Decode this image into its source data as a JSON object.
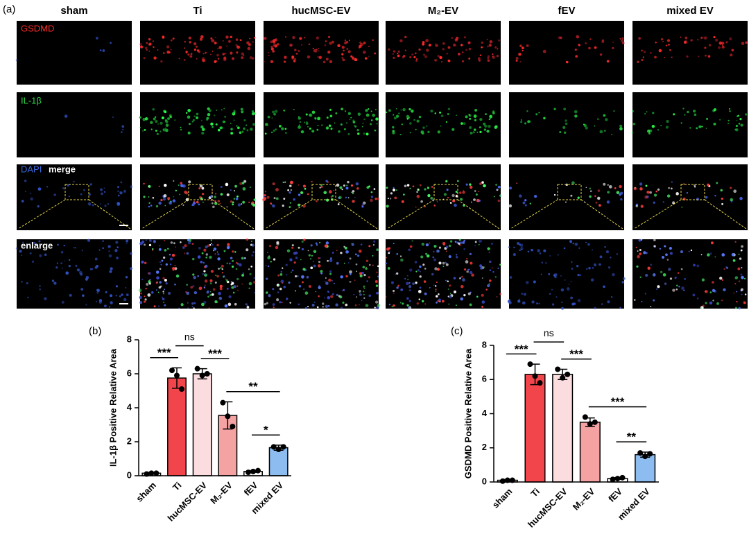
{
  "panel_a": {
    "label": "(a)",
    "columns": [
      "sham",
      "Ti",
      "hucMSC-EV",
      "M₂-EV",
      "fEV",
      "mixed EV"
    ],
    "rows": [
      "GSDMD",
      "IL-1β",
      "DAPI",
      "merge",
      "enlarge"
    ]
  },
  "chart_data": [
    {
      "type": "bar",
      "panel_label": "(b)",
      "ylabel": "IL-1β Positive Relative Area",
      "categories": [
        "sham",
        "Ti",
        "hucMSC-EV",
        "M₂-EV",
        "fEV",
        "mixed EV"
      ],
      "values": [
        0.15,
        5.75,
        6.0,
        3.55,
        0.25,
        1.65
      ],
      "errors": [
        0.05,
        0.6,
        0.3,
        0.8,
        0.05,
        0.15
      ],
      "points": [
        [
          0.1,
          0.15,
          0.15
        ],
        [
          6.2,
          5.9,
          5.1
        ],
        [
          6.3,
          5.9,
          6.0
        ],
        [
          4.3,
          3.5,
          2.9
        ],
        [
          0.2,
          0.25,
          0.3
        ],
        [
          1.7,
          1.55,
          1.7
        ]
      ],
      "colors": [
        "#ffffff",
        "#f2454b",
        "#fbdde0",
        "#f5a2a2",
        "#ffffff",
        "#8dbdf0"
      ],
      "ylim": [
        0,
        8
      ],
      "yticks": [
        0,
        2,
        4,
        6,
        8
      ],
      "significance": [
        {
          "from": 0,
          "to": 1,
          "label": "***"
        },
        {
          "from": 1,
          "to": 2,
          "label": "ns"
        },
        {
          "from": 2,
          "to": 3,
          "label": "***"
        },
        {
          "from": 3,
          "to": 5,
          "label": "**"
        },
        {
          "from": 4,
          "to": 5,
          "label": "*"
        }
      ]
    },
    {
      "type": "bar",
      "panel_label": "(c)",
      "ylabel": "GSDMD Positive Relative Area",
      "categories": [
        "sham",
        "Ti",
        "hucMSC-EV",
        "M₂-EV",
        "fEV",
        "mixed EV"
      ],
      "values": [
        0.1,
        6.3,
        6.3,
        3.5,
        0.2,
        1.6
      ],
      "errors": [
        0.05,
        0.6,
        0.3,
        0.25,
        0.05,
        0.15
      ],
      "points": [
        [
          0.05,
          0.1,
          0.1
        ],
        [
          6.9,
          6.2,
          5.8
        ],
        [
          6.6,
          6.1,
          6.3
        ],
        [
          3.8,
          3.4,
          3.5
        ],
        [
          0.15,
          0.2,
          0.25
        ],
        [
          1.7,
          1.5,
          1.65
        ]
      ],
      "colors": [
        "#ffffff",
        "#f2454b",
        "#fbdde0",
        "#f5a2a2",
        "#ffffff",
        "#8dbdf0"
      ],
      "ylim": [
        0,
        8
      ],
      "yticks": [
        0,
        2,
        4,
        6,
        8
      ],
      "significance": [
        {
          "from": 0,
          "to": 1,
          "label": "***"
        },
        {
          "from": 1,
          "to": 2,
          "label": "ns"
        },
        {
          "from": 2,
          "to": 3,
          "label": "***"
        },
        {
          "from": 3,
          "to": 5,
          "label": "***"
        },
        {
          "from": 4,
          "to": 5,
          "label": "**"
        }
      ]
    }
  ]
}
